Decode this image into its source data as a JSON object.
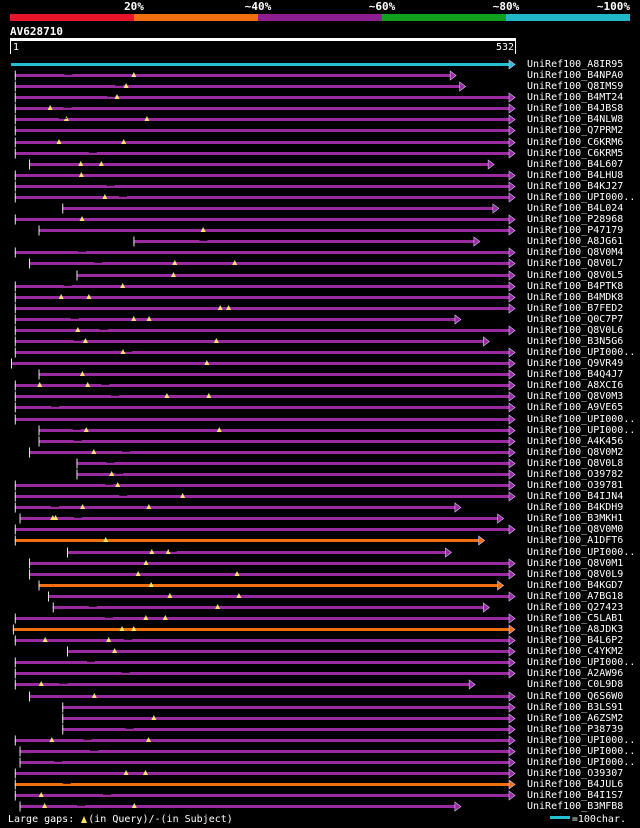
{
  "legend": {
    "labels": [
      "20%",
      "~40%",
      "~60%",
      "~80%",
      "~100%"
    ],
    "colors": [
      "#e8142c",
      "#f07010",
      "#8c1e90",
      "#10a020",
      "#20b8c8"
    ]
  },
  "query": {
    "title": "AV628710",
    "start": "1",
    "end": "532",
    "length": 532
  },
  "hits": [
    {
      "label": "UniRef100_A8IR95",
      "start": 1,
      "end": 532,
      "color": "#22c0d0"
    },
    {
      "label": "UniRef100_B4NPA0",
      "start": 5,
      "end": 470,
      "color": "#9a2aa0"
    },
    {
      "label": "UniRef100_Q8IMS9",
      "start": 5,
      "end": 480,
      "color": "#9a2aa0"
    },
    {
      "label": "UniRef100_B4MT24",
      "start": 5,
      "end": 532,
      "color": "#9a2aa0"
    },
    {
      "label": "UniRef100_B4JBS8",
      "start": 5,
      "end": 532,
      "color": "#9a2aa0"
    },
    {
      "label": "UniRef100_B4NLW8",
      "start": 5,
      "end": 532,
      "color": "#9a2aa0"
    },
    {
      "label": "UniRef100_Q7PRM2",
      "start": 5,
      "end": 532,
      "color": "#9a2aa0"
    },
    {
      "label": "UniRef100_C6KRM6",
      "start": 5,
      "end": 532,
      "color": "#9a2aa0"
    },
    {
      "label": "UniRef100_C6KRM5",
      "start": 5,
      "end": 532,
      "color": "#9a2aa0"
    },
    {
      "label": "UniRef100_B4L607",
      "start": 20,
      "end": 510,
      "color": "#9a2aa0"
    },
    {
      "label": "UniRef100_B4LHU8",
      "start": 5,
      "end": 532,
      "color": "#9a2aa0"
    },
    {
      "label": "UniRef100_B4KJ27",
      "start": 5,
      "end": 532,
      "color": "#9a2aa0"
    },
    {
      "label": "UniRef100_UPI000..",
      "start": 5,
      "end": 532,
      "color": "#9a2aa0"
    },
    {
      "label": "UniRef100_B4L024",
      "start": 55,
      "end": 515,
      "color": "#9a2aa0"
    },
    {
      "label": "UniRef100_P28968",
      "start": 5,
      "end": 532,
      "color": "#9a2aa0"
    },
    {
      "label": "UniRef100_P47179",
      "start": 30,
      "end": 532,
      "color": "#9a2aa0"
    },
    {
      "label": "UniRef100_A8JG61",
      "start": 130,
      "end": 495,
      "color": "#9a2aa0"
    },
    {
      "label": "UniRef100_Q8V0M4",
      "start": 5,
      "end": 532,
      "color": "#9a2aa0"
    },
    {
      "label": "UniRef100_Q8V0L7",
      "start": 20,
      "end": 532,
      "color": "#9a2aa0"
    },
    {
      "label": "UniRef100_Q8V0L5",
      "start": 70,
      "end": 532,
      "color": "#9a2aa0"
    },
    {
      "label": "UniRef100_B4PTK8",
      "start": 5,
      "end": 532,
      "color": "#9a2aa0"
    },
    {
      "label": "UniRef100_B4MDK8",
      "start": 5,
      "end": 532,
      "color": "#9a2aa0"
    },
    {
      "label": "UniRef100_B7FED2",
      "start": 5,
      "end": 532,
      "color": "#9a2aa0"
    },
    {
      "label": "UniRef100_Q0C7P7",
      "start": 5,
      "end": 475,
      "color": "#9a2aa0"
    },
    {
      "label": "UniRef100_Q8V0L6",
      "start": 5,
      "end": 532,
      "color": "#9a2aa0"
    },
    {
      "label": "UniRef100_B3N5G6",
      "start": 5,
      "end": 505,
      "color": "#9a2aa0"
    },
    {
      "label": "UniRef100_UPI000..",
      "start": 5,
      "end": 532,
      "color": "#9a2aa0"
    },
    {
      "label": "UniRef100_Q9VR49",
      "start": 1,
      "end": 532,
      "color": "#9a2aa0"
    },
    {
      "label": "UniRef100_B4Q4J7",
      "start": 30,
      "end": 532,
      "color": "#9a2aa0"
    },
    {
      "label": "UniRef100_A8XCI6",
      "start": 5,
      "end": 532,
      "color": "#9a2aa0"
    },
    {
      "label": "UniRef100_Q8V0M3",
      "start": 5,
      "end": 532,
      "color": "#9a2aa0"
    },
    {
      "label": "UniRef100_A9VE65",
      "start": 5,
      "end": 532,
      "color": "#9a2aa0"
    },
    {
      "label": "UniRef100_UPI000..",
      "start": 5,
      "end": 532,
      "color": "#9a2aa0"
    },
    {
      "label": "UniRef100_UPI000..",
      "start": 30,
      "end": 532,
      "color": "#9a2aa0"
    },
    {
      "label": "UniRef100_A4K456",
      "start": 30,
      "end": 532,
      "color": "#9a2aa0"
    },
    {
      "label": "UniRef100_Q8V0M2",
      "start": 20,
      "end": 532,
      "color": "#9a2aa0"
    },
    {
      "label": "UniRef100_Q8V0L8",
      "start": 70,
      "end": 532,
      "color": "#9a2aa0"
    },
    {
      "label": "UniRef100_O39782",
      "start": 70,
      "end": 532,
      "color": "#9a2aa0"
    },
    {
      "label": "UniRef100_O39781",
      "start": 5,
      "end": 532,
      "color": "#9a2aa0"
    },
    {
      "label": "UniRef100_B4IJN4",
      "start": 5,
      "end": 532,
      "color": "#9a2aa0"
    },
    {
      "label": "UniRef100_B4KDH9",
      "start": 5,
      "end": 475,
      "color": "#9a2aa0"
    },
    {
      "label": "UniRef100_B3MKH1",
      "start": 10,
      "end": 520,
      "color": "#9a2aa0"
    },
    {
      "label": "UniRef100_Q8V0M0",
      "start": 5,
      "end": 532,
      "color": "#9a2aa0"
    },
    {
      "label": "UniRef100_A1DFT6",
      "start": 5,
      "end": 500,
      "color": "#f07010"
    },
    {
      "label": "UniRef100_UPI000..",
      "start": 60,
      "end": 465,
      "color": "#9a2aa0"
    },
    {
      "label": "UniRef100_Q8V0M1",
      "start": 20,
      "end": 532,
      "color": "#9a2aa0"
    },
    {
      "label": "UniRef100_Q8V0L9",
      "start": 20,
      "end": 532,
      "color": "#9a2aa0"
    },
    {
      "label": "UniRef100_B4KGD7",
      "start": 30,
      "end": 520,
      "color": "#f07010"
    },
    {
      "label": "UniRef100_A7BG18",
      "start": 40,
      "end": 532,
      "color": "#9a2aa0"
    },
    {
      "label": "UniRef100_Q27423",
      "start": 45,
      "end": 505,
      "color": "#9a2aa0"
    },
    {
      "label": "UniRef100_C5LAB1",
      "start": 5,
      "end": 532,
      "color": "#9a2aa0"
    },
    {
      "label": "UniRef100_A8JDK3",
      "start": 3,
      "end": 532,
      "color": "#f07010"
    },
    {
      "label": "UniRef100_B4L6P2",
      "start": 5,
      "end": 532,
      "color": "#9a2aa0"
    },
    {
      "label": "UniRef100_C4YKM2",
      "start": 60,
      "end": 532,
      "color": "#9a2aa0"
    },
    {
      "label": "UniRef100_UPI000..",
      "start": 5,
      "end": 532,
      "color": "#9a2aa0"
    },
    {
      "label": "UniRef100_A2AW96",
      "start": 5,
      "end": 532,
      "color": "#9a2aa0"
    },
    {
      "label": "UniRef100_C0L9D8",
      "start": 5,
      "end": 490,
      "color": "#9a2aa0"
    },
    {
      "label": "UniRef100_Q6S6W0",
      "start": 20,
      "end": 532,
      "color": "#9a2aa0"
    },
    {
      "label": "UniRef100_B3LS91",
      "start": 55,
      "end": 532,
      "color": "#9a2aa0"
    },
    {
      "label": "UniRef100_A6ZSM2",
      "start": 55,
      "end": 532,
      "color": "#9a2aa0"
    },
    {
      "label": "UniRef100_P38739",
      "start": 55,
      "end": 532,
      "color": "#9a2aa0"
    },
    {
      "label": "UniRef100_UPI000..",
      "start": 5,
      "end": 532,
      "color": "#9a2aa0"
    },
    {
      "label": "UniRef100_UPI000..",
      "start": 10,
      "end": 532,
      "color": "#9a2aa0"
    },
    {
      "label": "UniRef100_UPI000..",
      "start": 10,
      "end": 532,
      "color": "#9a2aa0"
    },
    {
      "label": "UniRef100_O39307",
      "start": 5,
      "end": 532,
      "color": "#9a2aa0"
    },
    {
      "label": "UniRef100_B4JUL6",
      "start": 5,
      "end": 532,
      "color": "#f07010"
    },
    {
      "label": "UniRef100_B4I1S7",
      "start": 5,
      "end": 532,
      "color": "#9a2aa0"
    },
    {
      "label": "UniRef100_B3MFB8",
      "start": 10,
      "end": 475,
      "color": "#9a2aa0"
    }
  ],
  "footer": {
    "gaps_prefix": "Large gaps:",
    "gaps_query": "(in Query)/",
    "gaps_subject": "(in Subject)",
    "scale_label": "=100char."
  }
}
